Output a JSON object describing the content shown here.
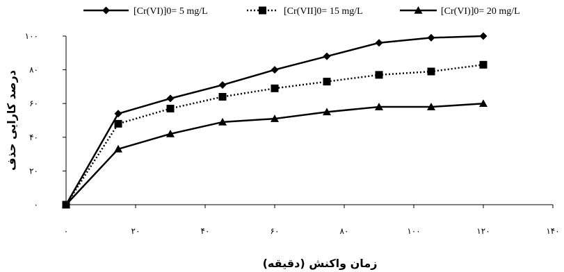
{
  "chart_data": {
    "type": "line",
    "title": "",
    "xlabel": "زمان واکنش (دقیقه)",
    "ylabel": "درصد کارایی حذف",
    "xlim": [
      0,
      140
    ],
    "ylim": [
      0,
      100
    ],
    "x_ticks": [
      0,
      20,
      40,
      60,
      80,
      100,
      120,
      140
    ],
    "x_tick_labels": [
      "۰",
      "۲۰",
      "۴۰",
      "۶۰",
      "۸۰",
      "۱۰۰",
      "۱۲۰",
      "۱۴۰"
    ],
    "y_ticks": [
      0,
      20,
      40,
      60,
      80,
      100
    ],
    "y_tick_labels": [
      "۰",
      "۲۰",
      "۴۰",
      "۶۰",
      "۸۰",
      "۱۰۰"
    ],
    "grid": false,
    "legend_position": "top",
    "x": [
      0,
      15,
      30,
      45,
      60,
      75,
      90,
      105,
      120
    ],
    "series": [
      {
        "name": "[Cr(VI)]0= 5 mg/L",
        "marker": "diamond",
        "line_style": "solid",
        "values": [
          0,
          54,
          63,
          71,
          80,
          88,
          96,
          99,
          100
        ]
      },
      {
        "name": "[Cr(VII]0= 15 mg/L",
        "marker": "square",
        "line_style": "dotted",
        "values": [
          0,
          48,
          57,
          64,
          69,
          73,
          77,
          79,
          83
        ]
      },
      {
        "name": "[Cr(VI)]0= 20 mg/L",
        "marker": "triangle",
        "line_style": "solid",
        "values": [
          0,
          33,
          42,
          49,
          51,
          55,
          58,
          58,
          60
        ]
      }
    ],
    "colors": {
      "line": "#000000",
      "axis": "#000000"
    }
  }
}
